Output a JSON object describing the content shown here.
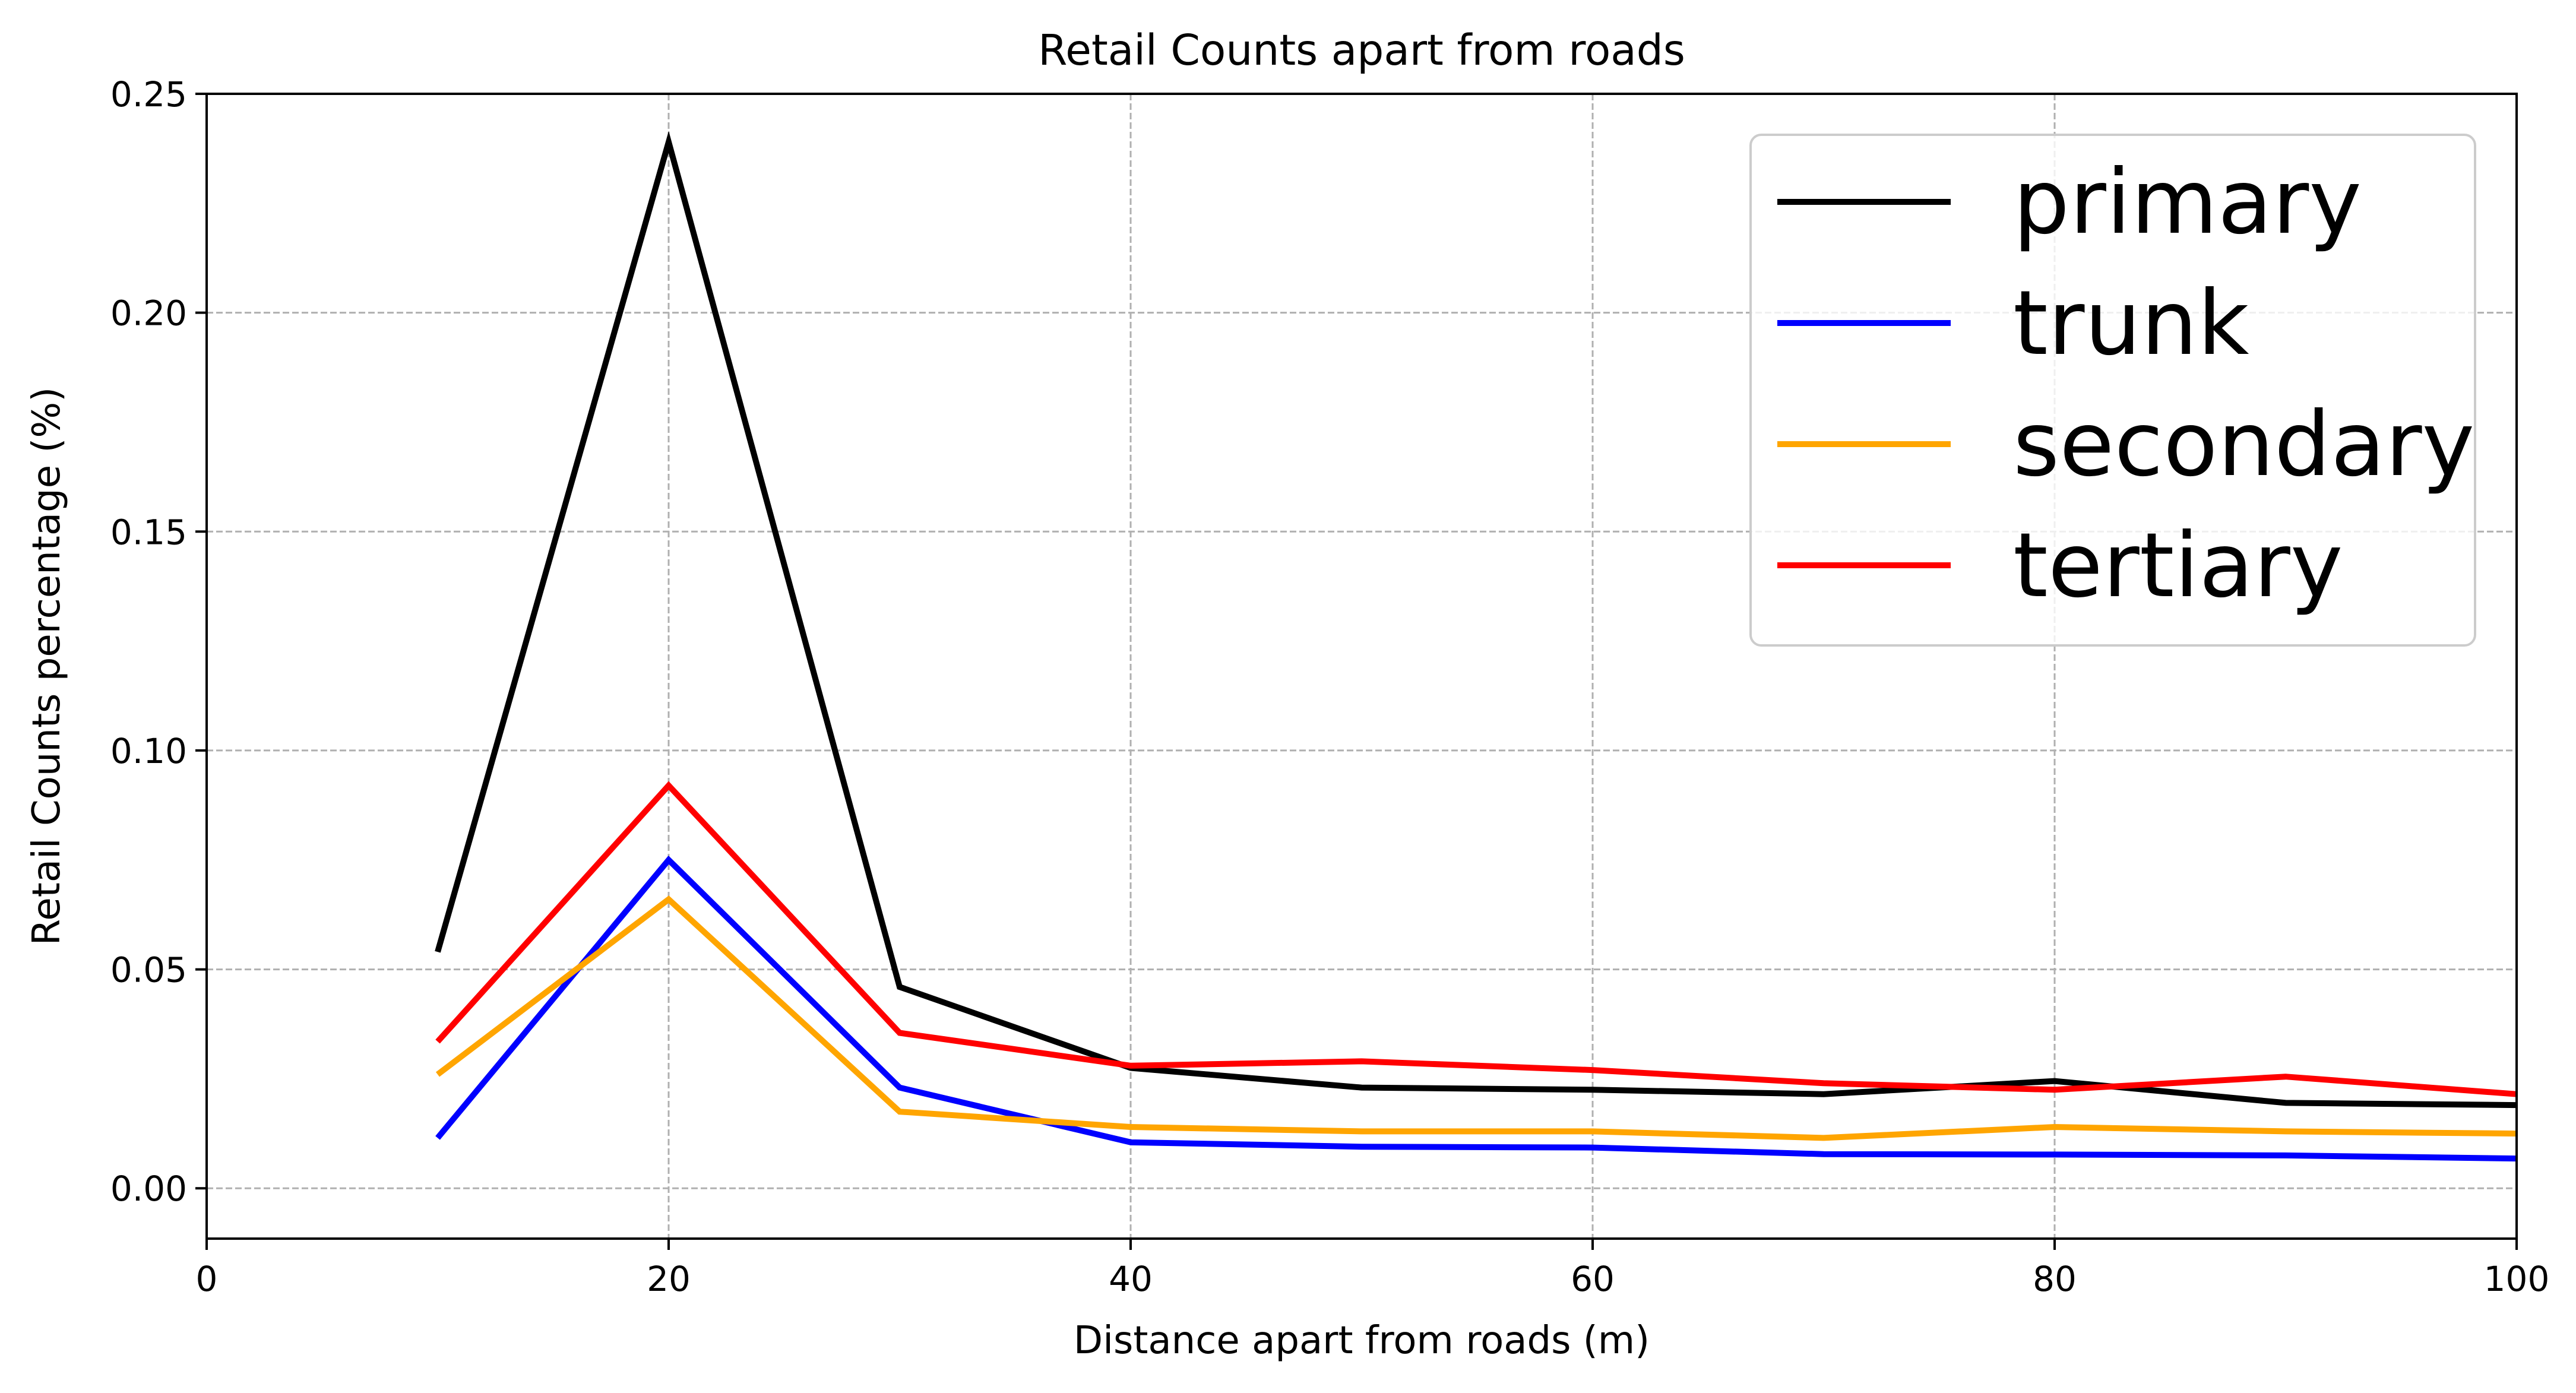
{
  "chart_data": {
    "type": "line",
    "title": "Retail Counts apart from roads",
    "xlabel": "Distance apart from roads (m)",
    "ylabel": "Retail Counts percentage (%)",
    "xlim": [
      0,
      100
    ],
    "ylim": [
      -0.0115,
      0.25
    ],
    "xticks": [
      0,
      20,
      40,
      60,
      80,
      100
    ],
    "xtick_labels": [
      "0",
      "20",
      "40",
      "60",
      "80",
      "100"
    ],
    "yticks": [
      0.0,
      0.05,
      0.1,
      0.15,
      0.2,
      0.25
    ],
    "ytick_labels": [
      "0.00",
      "0.05",
      "0.10",
      "0.15",
      "0.20",
      "0.25"
    ],
    "grid": true,
    "grid_style": "dashed",
    "legend_position": "top-right",
    "x": [
      10,
      20,
      30,
      40,
      50,
      60,
      70,
      80,
      90,
      100
    ],
    "series": [
      {
        "name": "primary",
        "color": "#000000",
        "values": [
          0.054,
          0.239,
          0.046,
          0.0275,
          0.023,
          0.0225,
          0.0215,
          0.0245,
          0.0195,
          0.019
        ]
      },
      {
        "name": "trunk",
        "color": "#0000ff",
        "values": [
          0.0115,
          0.075,
          0.023,
          0.0105,
          0.0095,
          0.0093,
          0.0078,
          0.0077,
          0.0075,
          0.0068
        ]
      },
      {
        "name": "secondary",
        "color": "#ffa500",
        "values": [
          0.026,
          0.066,
          0.0175,
          0.014,
          0.013,
          0.013,
          0.0115,
          0.014,
          0.013,
          0.0125
        ]
      },
      {
        "name": "tertiary",
        "color": "#ff0000",
        "values": [
          0.0335,
          0.092,
          0.0355,
          0.028,
          0.029,
          0.027,
          0.024,
          0.0225,
          0.0255,
          0.0215
        ]
      }
    ]
  }
}
